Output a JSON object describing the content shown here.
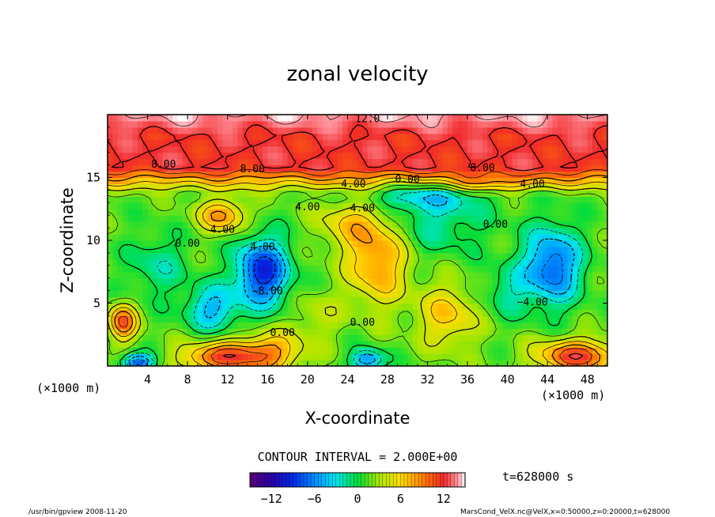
{
  "chart_data": {
    "type": "heatmap",
    "title": "zonal velocity",
    "xlabel": "X-coordinate",
    "ylabel": "Z-coordinate",
    "x_unit": "(×1000 m)",
    "y_unit": "(×1000 m)",
    "xlim": [
      0,
      50
    ],
    "ylim": [
      0,
      20
    ],
    "x_ticks": [
      4,
      8,
      12,
      16,
      20,
      24,
      28,
      32,
      36,
      40,
      44,
      48
    ],
    "y_ticks": [
      5,
      10,
      15
    ],
    "contour_interval_text": "CONTOUR INTERVAL = 2.000E+00",
    "time_text": "t=628000 s",
    "colorbar": {
      "range": [
        -15,
        15
      ],
      "ticks": [
        -12,
        -6,
        0,
        6,
        12
      ],
      "tick_labels": [
        "−12",
        "−6",
        "0",
        "6",
        "12"
      ]
    },
    "contour_labels": [
      {
        "text": "12.0",
        "x": 26,
        "z": 19.4
      },
      {
        "text": "8.00",
        "x": 5.6,
        "z": 15.8
      },
      {
        "text": "8.00",
        "x": 14.5,
        "z": 15.4
      },
      {
        "text": "8.00",
        "x": 37.5,
        "z": 15.5
      },
      {
        "text": "4.00",
        "x": 24.6,
        "z": 14.2
      },
      {
        "text": "4.00",
        "x": 42.5,
        "z": 14.2
      },
      {
        "text": "0.00",
        "x": 30,
        "z": 14.6
      },
      {
        "text": "4.00",
        "x": 20,
        "z": 12.4
      },
      {
        "text": "4.00",
        "x": 25.5,
        "z": 12.3
      },
      {
        "text": "4.00",
        "x": 11.5,
        "z": 10.6
      },
      {
        "text": "0.00",
        "x": 38.8,
        "z": 11
      },
      {
        "text": "0.00",
        "x": 8,
        "z": 9.5
      },
      {
        "text": "4.00",
        "x": 15.5,
        "z": 9.2
      },
      {
        "text": "−8.00",
        "x": 16,
        "z": 5.7
      },
      {
        "text": "−4.00",
        "x": 42.5,
        "z": 4.8
      },
      {
        "text": "0.00",
        "x": 25.5,
        "z": 3.2
      },
      {
        "text": "0.00",
        "x": 17.5,
        "z": 2.4
      }
    ]
  },
  "footer": {
    "left": "/usr/bin/gpview  2008-11-20",
    "right": "MarsCond_VelX.nc@VelX,x=0:50000,z=0:20000,t=628000"
  }
}
